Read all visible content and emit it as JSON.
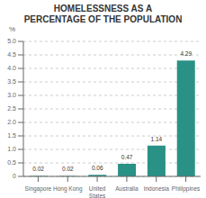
{
  "chart_data": {
    "type": "bar",
    "title": "HOMELESSNESS AS A\nPERCENTAGE OF THE POPULATION",
    "y_label": "%",
    "categories": [
      "Singapore",
      "Hong Kong",
      "United\nStates",
      "Australia",
      "Indonesia",
      "Philippines"
    ],
    "values": [
      0.02,
      0.02,
      0.06,
      0.47,
      1.14,
      4.29
    ],
    "color": "#2a9186",
    "ylim": [
      0,
      5.0
    ],
    "yticks": [
      0,
      0.5,
      {
        "value": 1.0,
        "label": "1.0"
      },
      {
        "value": 1.5,
        "label": "1.5"
      },
      {
        "value": 2.0,
        "label": "2.0"
      },
      {
        "value": 2.5,
        "label": "2.5"
      },
      {
        "value": 3.0,
        "label": "3.0"
      },
      {
        "value": 3.5,
        "label": "3.5"
      },
      {
        "value": 4.0,
        "label": "4.0"
      },
      {
        "value": 4.5,
        "label": "4.5"
      },
      {
        "value": 5.0,
        "label": "5.0"
      }
    ],
    "grid": true,
    "data_labels": true
  }
}
